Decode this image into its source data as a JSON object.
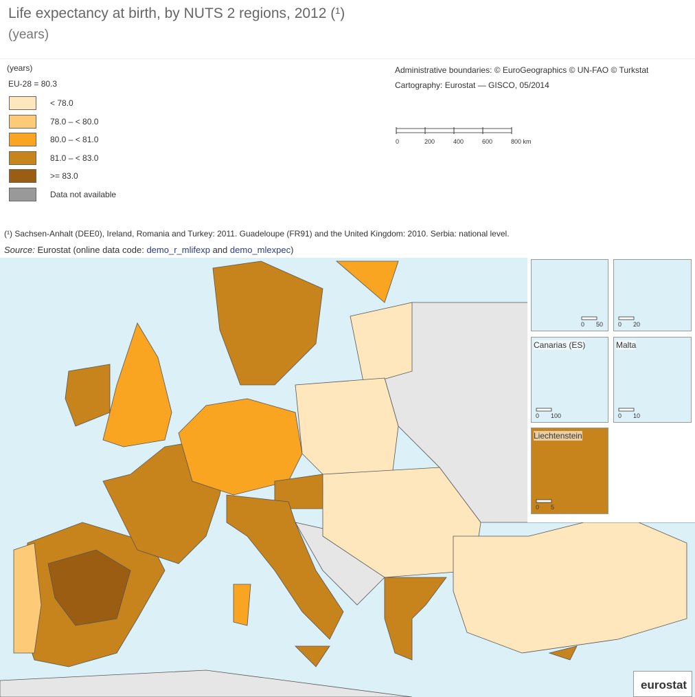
{
  "header": {
    "title": "Life expectancy at birth, by NUTS 2 regions, 2012 (¹)",
    "subtitle": "(years)"
  },
  "legend": {
    "title": "(years)",
    "reference": "EU-28 = 80.3",
    "items": [
      {
        "label": "< 78.0",
        "color": "#fee6bd"
      },
      {
        "label": "78.0 – < 80.0",
        "color": "#fdcb78"
      },
      {
        "label": "80.0 – < 81.0",
        "color": "#f9a521"
      },
      {
        "label": "81.0 – < 83.0",
        "color": "#c8841c"
      },
      {
        "label": ">= 83.0",
        "color": "#9a5d12"
      },
      {
        "label": "Data not available",
        "color": "#999999"
      }
    ]
  },
  "credits": [
    "Administrative boundaries: © EuroGeographics © UN-FAO © Turkstat",
    "Cartography: Eurostat — GISCO, 05/2014"
  ],
  "scale": [
    "0",
    "200",
    "400",
    "600",
    "800 km"
  ],
  "footnote": "(¹) Sachsen-Anhalt (DEE0), Ireland, Romania and Turkey: 2011. Guadeloupe (FR91) and the United Kingdom: 2010. Serbia: national level.",
  "source": {
    "label": "Source:",
    "text": "Eurostat (online data code:",
    "link1": "demo_r_mlifexp",
    "joiner": "and",
    "link2": "demo_mlexpec",
    "close": ")"
  },
  "insets": [
    {
      "label": "",
      "scale": [
        "0",
        "50"
      ]
    },
    {
      "label": "",
      "scale": [
        "0",
        "20"
      ]
    },
    {
      "label": "Canarias (ES)",
      "scale": [
        "0",
        "100"
      ]
    },
    {
      "label": "Malta",
      "scale": [
        "0",
        "10"
      ]
    },
    {
      "label": "Liechtenstein",
      "scale": [
        "0",
        "5"
      ]
    }
  ],
  "logo": "eurostat"
}
